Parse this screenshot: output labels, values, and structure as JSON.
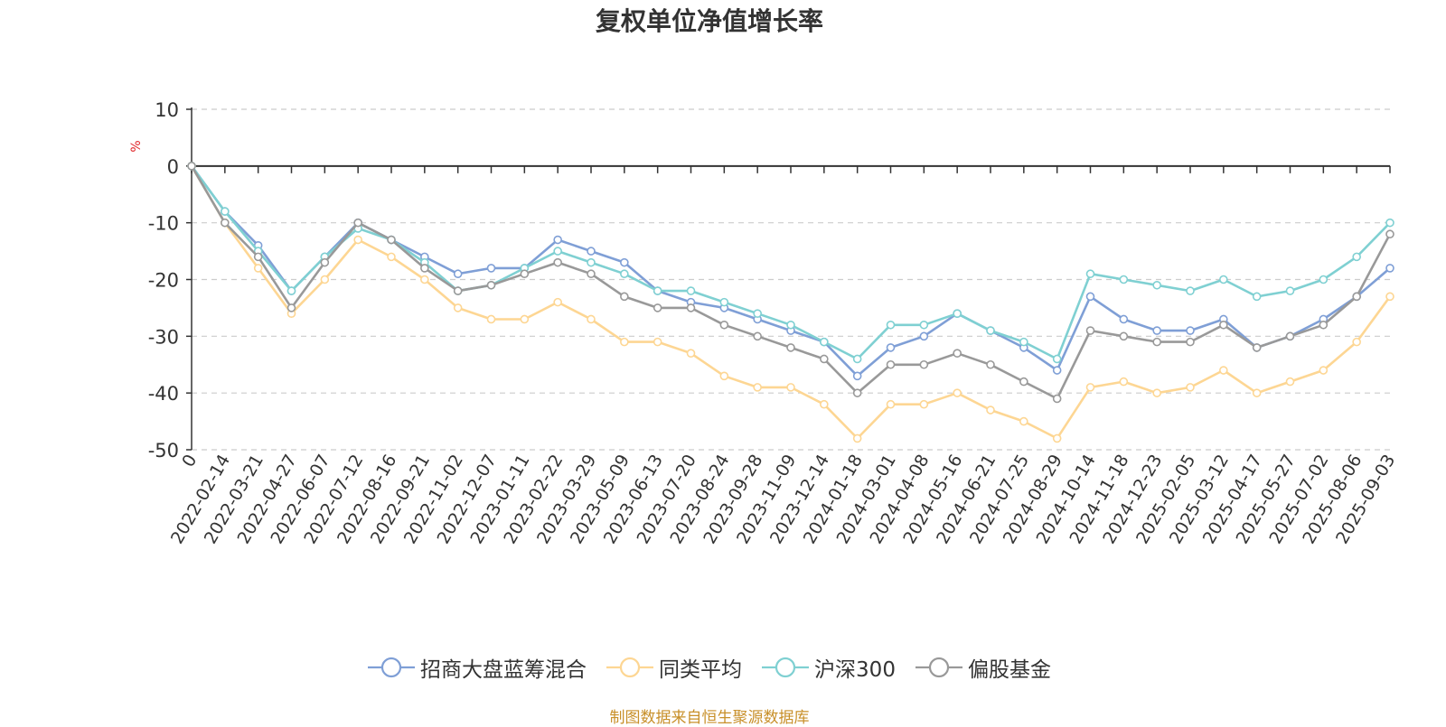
{
  "chart_data": {
    "type": "line",
    "title": "复权单位净值增长率",
    "ylabel": "%",
    "ylim": [
      -50,
      10
    ],
    "yticks": [
      "10",
      "0",
      "-10",
      "-20",
      "-30",
      "-40",
      "-50"
    ],
    "x": [
      "0",
      "2022-02-14",
      "2022-03-21",
      "2022-04-27",
      "2022-06-07",
      "2022-07-12",
      "2022-08-16",
      "2022-09-21",
      "2022-11-02",
      "2022-12-07",
      "2023-01-11",
      "2023-02-22",
      "2023-03-29",
      "2023-05-09",
      "2023-06-13",
      "2023-07-20",
      "2023-08-24",
      "2023-09-28",
      "2023-11-09",
      "2023-12-14",
      "2024-01-18",
      "2024-03-01",
      "2024-04-08",
      "2024-05-16",
      "2024-06-21",
      "2024-07-25",
      "2024-08-29",
      "2024-10-14",
      "2024-11-18",
      "2024-12-23",
      "2025-02-05",
      "2025-03-12",
      "2025-04-17",
      "2025-05-27",
      "2025-07-02",
      "2025-08-06",
      "2025-09-03"
    ],
    "grid": true,
    "legend_position": "bottom",
    "series": [
      {
        "name": "招商大盘蓝筹混合",
        "color": "#7f9fd6",
        "values": [
          0,
          -8,
          -14,
          -22,
          -16,
          -10,
          -13,
          -16,
          -19,
          -18,
          -18,
          -13,
          -15,
          -17,
          -22,
          -24,
          -25,
          -27,
          -29,
          -31,
          -37,
          -32,
          -30,
          -26,
          -29,
          -32,
          -36,
          -23,
          -27,
          -29,
          -29,
          -27,
          -32,
          -30,
          -27,
          -23,
          -18
        ]
      },
      {
        "name": "同类平均",
        "color": "#fdd693",
        "values": [
          0,
          -10,
          -18,
          -26,
          -20,
          -13,
          -16,
          -20,
          -25,
          -27,
          -27,
          -24,
          -27,
          -31,
          -31,
          -33,
          -37,
          -39,
          -39,
          -42,
          -48,
          -42,
          -42,
          -40,
          -43,
          -45,
          -48,
          -39,
          -38,
          -40,
          -39,
          -36,
          -40,
          -38,
          -36,
          -31,
          -23
        ]
      },
      {
        "name": "沪深300",
        "color": "#7fd0d2",
        "values": [
          0,
          -8,
          -15,
          -22,
          -16,
          -11,
          -13,
          -17,
          -22,
          -21,
          -18,
          -15,
          -17,
          -19,
          -22,
          -22,
          -24,
          -26,
          -28,
          -31,
          -34,
          -28,
          -28,
          -26,
          -29,
          -31,
          -34,
          -19,
          -20,
          -21,
          -22,
          -20,
          -23,
          -22,
          -20,
          -16,
          -10
        ]
      },
      {
        "name": "偏股基金",
        "color": "#999999",
        "values": [
          0,
          -10,
          -16,
          -25,
          -17,
          -10,
          -13,
          -18,
          -22,
          -21,
          -19,
          -17,
          -19,
          -23,
          -25,
          -25,
          -28,
          -30,
          -32,
          -34,
          -40,
          -35,
          -35,
          -33,
          -35,
          -38,
          -41,
          -29,
          -30,
          -31,
          -31,
          -28,
          -32,
          -30,
          -28,
          -23,
          -12
        ]
      }
    ]
  },
  "source_note": "制图数据来自恒生聚源数据库"
}
